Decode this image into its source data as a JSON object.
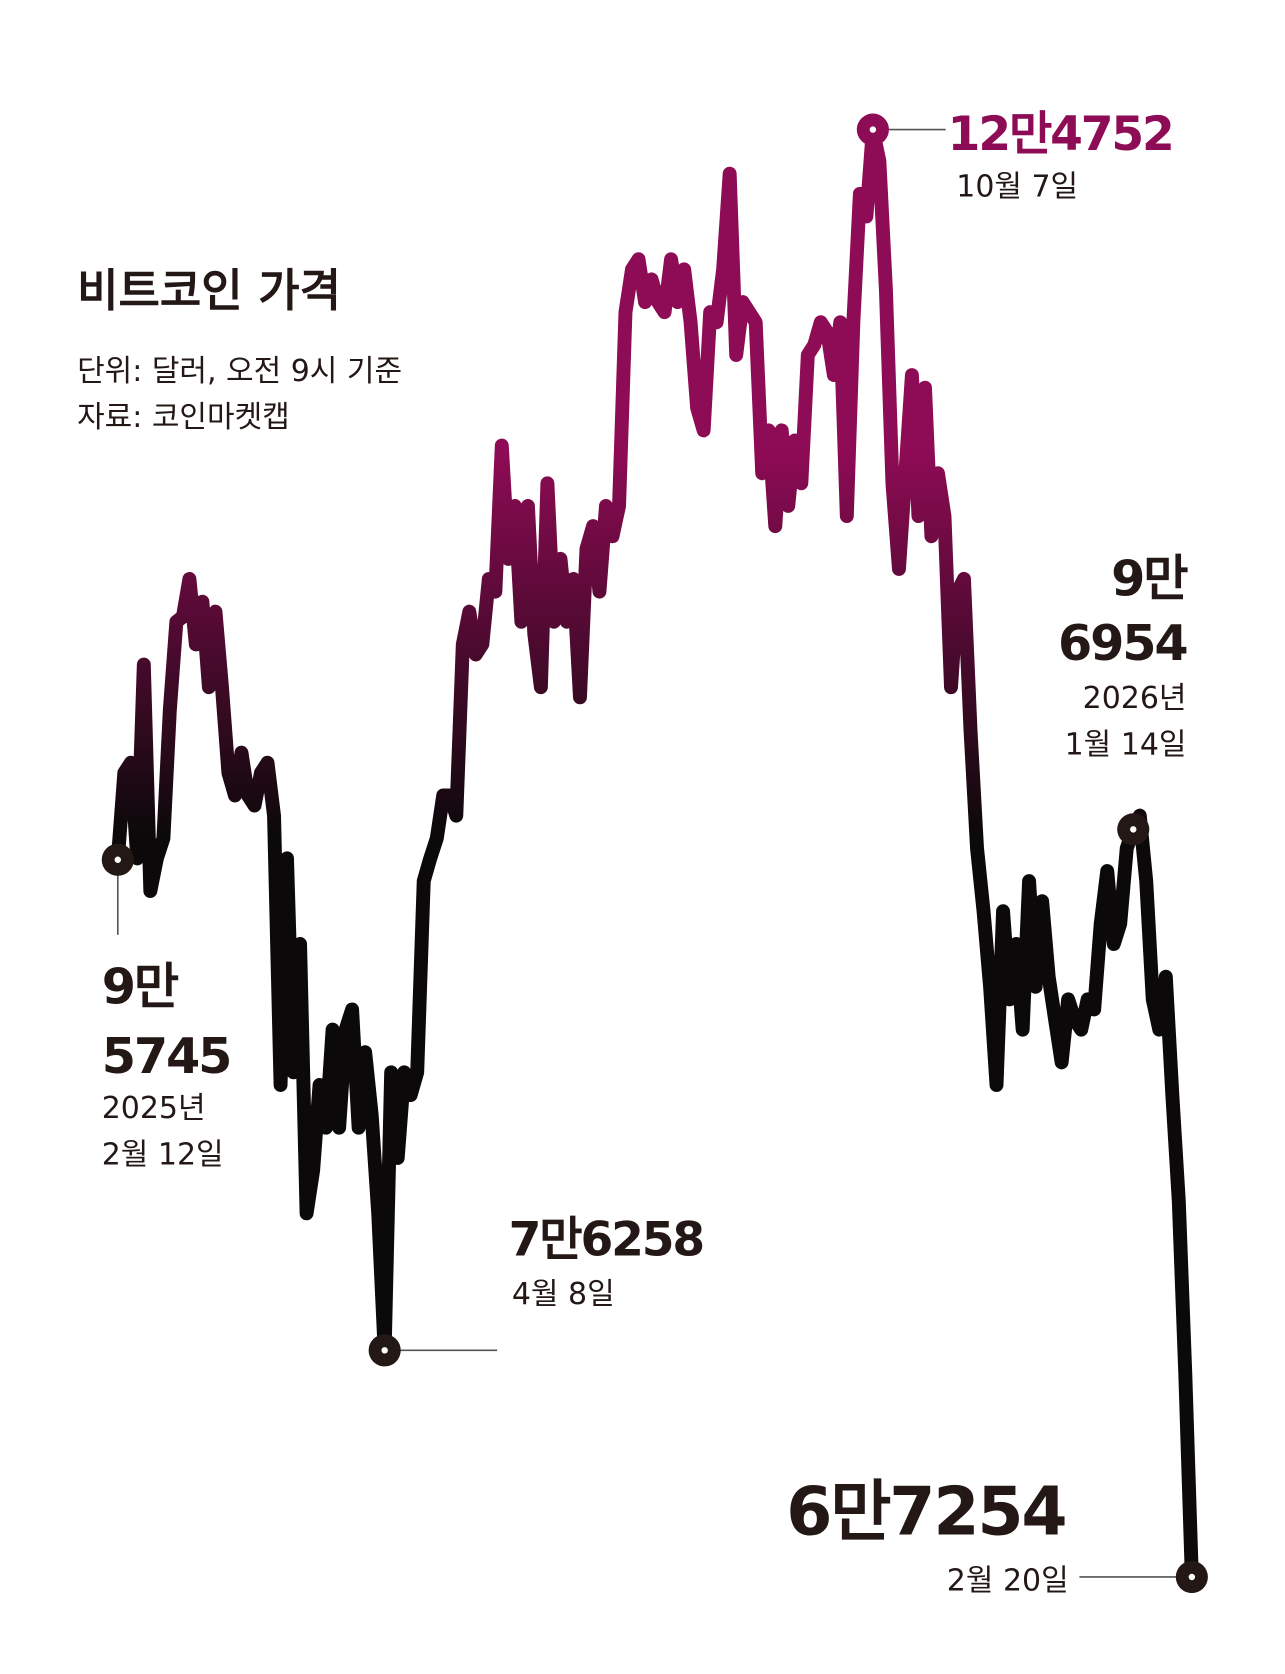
{
  "chart_data": {
    "type": "line",
    "title": "비트코인 가격",
    "subtitle": [
      "단위: 달러, 오전 9시 기준",
      "자료: 코인마켓캡"
    ],
    "color_top": "#8e0b55",
    "color_bottom": "#0b0909",
    "ylim": [
      63400,
      129900
    ],
    "values": [
      95745,
      99200,
      99600,
      95800,
      103500,
      94500,
      95800,
      96600,
      101700,
      105200,
      105400,
      106900,
      104300,
      106000,
      102600,
      105600,
      102600,
      99200,
      98300,
      100000,
      98300,
      97900,
      99200,
      99600,
      97500,
      86800,
      95800,
      87300,
      92400,
      81700,
      83400,
      86800,
      85100,
      89000,
      85100,
      89000,
      89800,
      85100,
      88100,
      85600,
      81700,
      76258,
      87300,
      83900,
      87300,
      86400,
      87300,
      94900,
      95800,
      96600,
      98300,
      98300,
      97500,
      104300,
      105600,
      103900,
      104300,
      106900,
      106400,
      112200,
      107700,
      109800,
      105200,
      109800,
      104700,
      102600,
      110700,
      105200,
      107700,
      105200,
      106900,
      102200,
      108100,
      109000,
      106400,
      109800,
      108600,
      109800,
      117500,
      119200,
      119600,
      117900,
      118800,
      117900,
      117500,
      119600,
      117900,
      119200,
      117100,
      113700,
      112800,
      117500,
      117100,
      119200,
      123000,
      115800,
      117900,
      117500,
      117100,
      111100,
      112800,
      109000,
      112800,
      109800,
      112400,
      110700,
      115800,
      116200,
      117100,
      116700,
      115000,
      117100,
      109400,
      117100,
      122200,
      121300,
      124752,
      123500,
      118400,
      110700,
      107300,
      111100,
      115000,
      109400,
      114500,
      108600,
      111100,
      109400,
      102600,
      106400,
      106900,
      100900,
      96200,
      93700,
      90700,
      86800,
      93700,
      90200,
      92400,
      89000,
      94900,
      90700,
      94100,
      91100,
      89400,
      87700,
      90200,
      89400,
      89000,
      90200,
      89800,
      93200,
      95300,
      92400,
      93200,
      96200,
      96954,
      97500,
      94900,
      90200,
      89000,
      91100,
      86400,
      82200,
      75300,
      67254
    ],
    "annotations": [
      {
        "value": 95745,
        "label": [
          "9만",
          "5745"
        ],
        "date": [
          "2025년",
          "2월 12일"
        ]
      },
      {
        "value": 76258,
        "label": [
          "7만6258"
        ],
        "date": [
          "4월 8일"
        ]
      },
      {
        "value": 124752,
        "label": [
          "12만4752"
        ],
        "date": [
          "10월 7일"
        ]
      },
      {
        "value": 96954,
        "label": [
          "9만",
          "6954"
        ],
        "date": [
          "2026년",
          "1월 14일"
        ]
      },
      {
        "value": 67254,
        "label": [
          "6만7254"
        ],
        "date": [
          "2월 20일"
        ]
      }
    ]
  }
}
